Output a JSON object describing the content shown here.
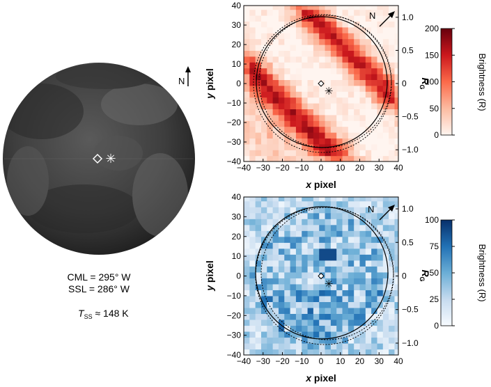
{
  "globe": {
    "north_label": "N",
    "cml": "CML = 295° W",
    "ssl": "SSL = 286° W",
    "tss_symbol": "T",
    "tss_sub": "SS",
    "tss_value": " ≈ 148 K"
  },
  "chart_data": [
    {
      "type": "heatmap",
      "id": "top",
      "colorscale": "reds",
      "xlabel_italic": "x",
      "xlabel_rest": " pixel",
      "ylabel_italic": "y",
      "ylabel_rest": " pixel",
      "right_axis_label": "R",
      "right_axis_sub": "G",
      "xlim": [
        -40,
        40
      ],
      "ylim": [
        -40,
        40
      ],
      "xticks": [
        "−40",
        "−30",
        "−20",
        "−10",
        "0",
        "10",
        "20",
        "30",
        "40"
      ],
      "yticks": [
        "40",
        "30",
        "20",
        "10",
        "0",
        "−10",
        "−20",
        "−30",
        "−40"
      ],
      "right_ticks": [
        "1.0",
        "0.5",
        "0",
        "−0.5",
        "−1.0"
      ],
      "north_label": "N",
      "colorbar_label": "Brightness (R)",
      "colorbar_ticks": [
        "200",
        "150",
        "100",
        "50",
        "0"
      ],
      "vmin": 0,
      "vmax": 200,
      "disk_radius_px": 34,
      "diamond_xy": [
        0,
        0
      ],
      "star_xy": [
        4,
        -4
      ]
    },
    {
      "type": "heatmap",
      "id": "bottom",
      "colorscale": "blues",
      "xlabel_italic": "x",
      "xlabel_rest": " pixel",
      "ylabel_italic": "y",
      "ylabel_rest": " pixel",
      "right_axis_label": "R",
      "right_axis_sub": "G",
      "xlim": [
        -40,
        40
      ],
      "ylim": [
        -40,
        40
      ],
      "xticks": [
        "−40",
        "−30",
        "−20",
        "−10",
        "0",
        "10",
        "20",
        "30",
        "40"
      ],
      "yticks": [
        "40",
        "30",
        "20",
        "10",
        "0",
        "−10",
        "−20",
        "−30",
        "−40"
      ],
      "right_ticks": [
        "1.0",
        "0.5",
        "0",
        "−0.5",
        "−1.0"
      ],
      "north_label": "N",
      "colorbar_label": "Brightness (R)",
      "colorbar_ticks": [
        "100",
        "75",
        "50",
        "25",
        "0"
      ],
      "vmin": 0,
      "vmax": 100,
      "disk_radius_px": 34,
      "diamond_xy": [
        0,
        0
      ],
      "star_xy": [
        4,
        -4
      ]
    }
  ]
}
